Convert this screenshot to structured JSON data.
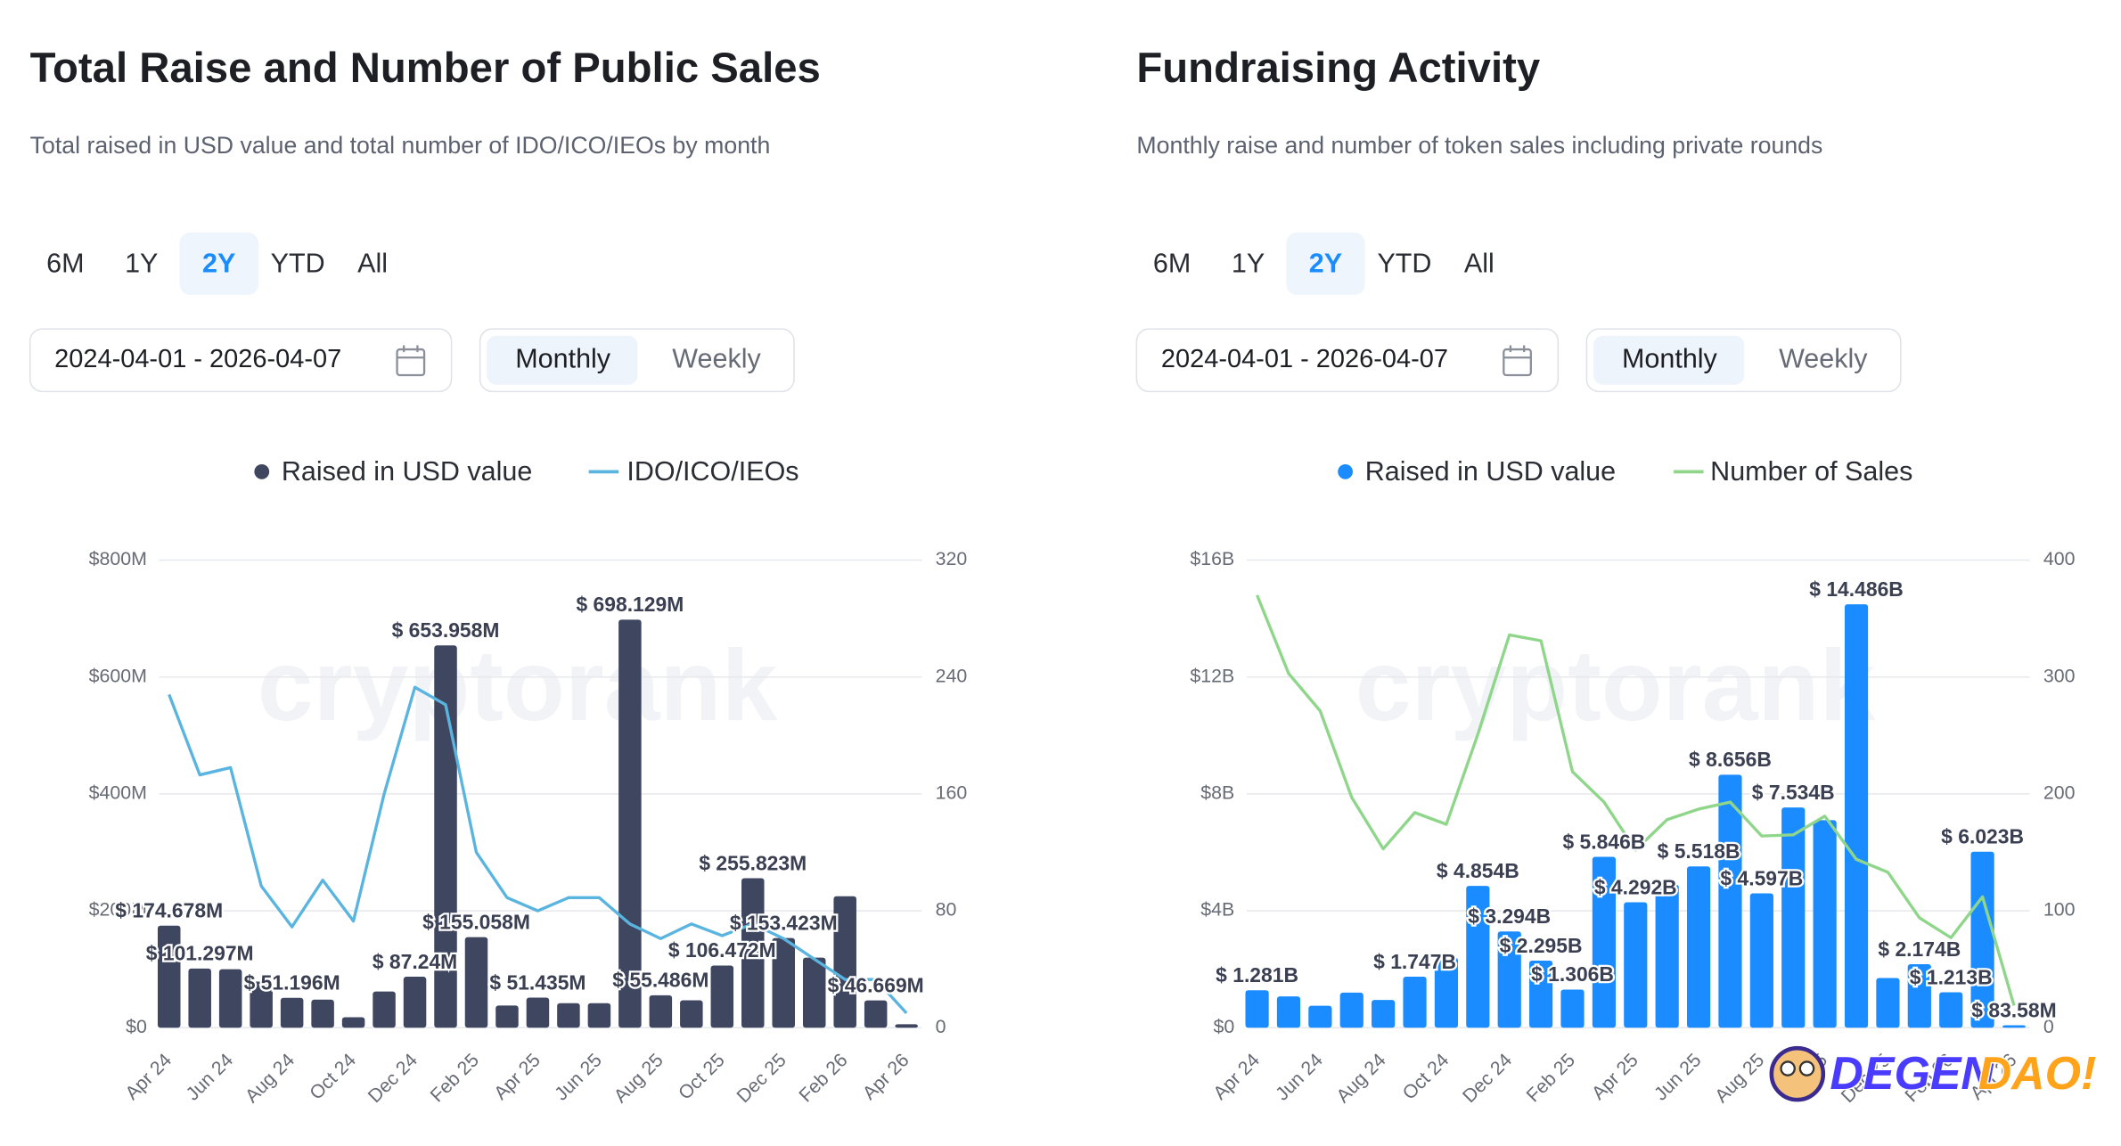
{
  "chart_data": [
    {
      "type": "bar",
      "title": "Total Raise and Number of Public Sales",
      "subtitle": "Total raised in USD value and total number of IDO/ICO/IEOs by month",
      "categories": [
        "Apr 24",
        null,
        "Jun 24",
        null,
        "Aug 24",
        null,
        "Oct 24",
        null,
        "Dec 24",
        null,
        "Feb 25",
        null,
        "Apr 25",
        null,
        "Jun 25",
        null,
        "Aug 25",
        null,
        "Oct 25",
        null,
        "Dec 25",
        null,
        "Feb 26",
        null,
        "Apr 26"
      ],
      "series": [
        {
          "name": "Raised in USD value",
          "type": "bar",
          "color": "#3f4660",
          "values": [
            174.678,
            101.297,
            100,
            79,
            51.196,
            48,
            18,
            62,
            87.24,
            653.958,
            155.058,
            38,
            51.435,
            42,
            42,
            698.129,
            55.486,
            47,
            106.472,
            255.823,
            153.423,
            120,
            225,
            46.669,
            6
          ],
          "value_labels": [
            "$ 174.678M",
            "$ 101.297M",
            null,
            null,
            "$ 51.196M",
            null,
            null,
            null,
            "$ 87.24M",
            "$ 653.958M",
            "$ 155.058M",
            null,
            "$ 51.435M",
            null,
            null,
            "$ 698.129M",
            "$ 55.486M",
            null,
            "$ 106.472M",
            "$ 255.823M",
            "$ 153.423M",
            null,
            null,
            "$ 46.669M",
            null
          ]
        },
        {
          "name": "IDO/ICO/IEOs",
          "type": "line",
          "axis": "y2",
          "color": "#5ab4e0",
          "values": [
            228,
            173,
            178,
            97,
            69,
            101,
            73,
            160,
            233,
            221,
            120,
            89,
            80,
            89,
            89,
            71,
            61,
            71,
            63,
            71,
            61,
            47,
            33,
            33,
            10
          ]
        }
      ],
      "ylim": [
        0,
        800
      ],
      "yticks": [
        {
          "value": 0,
          "label": "$0"
        },
        {
          "value": 200,
          "label": "$200M"
        },
        {
          "value": 400,
          "label": "$400M"
        },
        {
          "value": 600,
          "label": "$600M"
        },
        {
          "value": 800,
          "label": "$800M"
        }
      ],
      "y2lim": [
        0,
        320
      ],
      "y2ticks": [
        0,
        80,
        160,
        240,
        320
      ],
      "grid": true,
      "watermark": "cryptorank"
    },
    {
      "type": "bar",
      "title": "Fundraising Activity",
      "subtitle": "Monthly raise and number of token sales including private rounds",
      "categories": [
        "Apr 24",
        null,
        "Jun 24",
        null,
        "Aug 24",
        null,
        "Oct 24",
        null,
        "Dec 24",
        null,
        "Feb 25",
        null,
        "Apr 25",
        null,
        "Jun 25",
        null,
        "Aug 25",
        null,
        "Oct 25",
        null,
        "Dec 25",
        null,
        "Feb 26",
        null,
        "Apr 26"
      ],
      "series": [
        {
          "name": "Raised in USD value",
          "type": "bar",
          "color": "#1a8cff",
          "values": [
            1.281,
            1.07,
            0.75,
            1.2,
            0.95,
            1.747,
            2.4,
            4.854,
            3.294,
            2.295,
            1.306,
            5.846,
            4.292,
            4.9,
            5.518,
            8.656,
            4.597,
            7.534,
            7.1,
            14.486,
            1.7,
            2.174,
            1.213,
            6.023,
            0.08358
          ],
          "value_labels": [
            "$ 1.281B",
            null,
            null,
            null,
            null,
            "$ 1.747B",
            null,
            "$ 4.854B",
            "$ 3.294B",
            "$ 2.295B",
            "$ 1.306B",
            "$ 5.846B",
            "$ 4.292B",
            null,
            "$ 5.518B",
            "$ 8.656B",
            "$ 4.597B",
            "$ 7.534B",
            null,
            "$ 14.486B",
            null,
            "$ 2.174B",
            "$ 1.213B",
            "$ 6.023B",
            "$ 83.58M"
          ]
        },
        {
          "name": "Number of Sales",
          "type": "line",
          "axis": "y2",
          "color": "#8fd68a",
          "values": [
            370,
            303,
            271,
            197,
            153,
            184,
            174,
            251,
            336,
            331,
            219,
            193,
            152,
            178,
            187,
            193,
            164,
            165,
            181,
            144,
            133,
            94,
            77,
            112,
            19
          ]
        }
      ],
      "ylim": [
        0,
        16
      ],
      "yticks": [
        {
          "value": 0,
          "label": "$0"
        },
        {
          "value": 4,
          "label": "$4B"
        },
        {
          "value": 8,
          "label": "$8B"
        },
        {
          "value": 12,
          "label": "$12B"
        },
        {
          "value": 16,
          "label": "$16B"
        }
      ],
      "y2lim": [
        0,
        400
      ],
      "y2ticks": [
        0,
        100,
        200,
        300,
        400
      ],
      "grid": true,
      "watermark": "cryptorank"
    }
  ],
  "controls": [
    {
      "ranges": [
        "6M",
        "1Y",
        "2Y",
        "YTD",
        "All"
      ],
      "selected_range_index": 2,
      "date_range": "2024-04-01 - 2026-04-07",
      "intervals": [
        "Monthly",
        "Weekly"
      ],
      "selected_interval_index": 0
    },
    {
      "ranges": [
        "6M",
        "1Y",
        "2Y",
        "YTD",
        "All"
      ],
      "selected_range_index": 2,
      "date_range": "2024-04-01 - 2026-04-07",
      "intervals": [
        "Monthly",
        "Weekly"
      ],
      "selected_interval_index": 0
    }
  ],
  "logo": {
    "part1": "DEGEN",
    "part2": "DAO!"
  }
}
